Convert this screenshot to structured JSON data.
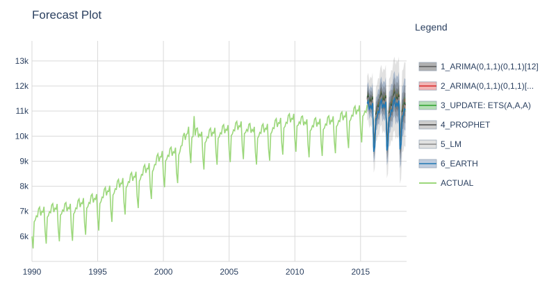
{
  "chart_data": {
    "type": "line",
    "title": "Forecast Plot",
    "legend_title": "Legend",
    "legend_position": "right",
    "grid": true,
    "xlim": [
      1990,
      2018.5
    ],
    "ylim": [
      5000,
      13800
    ],
    "x_ticks": [
      1990,
      1995,
      2000,
      2005,
      2010,
      2015
    ],
    "x_tick_labels": [
      "1990",
      "1995",
      "2000",
      "2005",
      "2010",
      "2015"
    ],
    "y_ticks": [
      6000,
      7000,
      8000,
      9000,
      10000,
      11000,
      12000,
      13000
    ],
    "y_tick_labels": [
      "6k",
      "7k",
      "8k",
      "9k",
      "10k",
      "11k",
      "12k",
      "13k"
    ],
    "actual": {
      "name": "ACTUAL",
      "color": "#9bd77a",
      "start": "1990-01",
      "frequency": "monthly",
      "yearly_levels": [
        [
          1990,
          6700
        ],
        [
          1991,
          6900
        ],
        [
          1992,
          7000
        ],
        [
          1993,
          7000
        ],
        [
          1994,
          7250
        ],
        [
          1995,
          7400
        ],
        [
          1996,
          7750
        ],
        [
          1997,
          8050
        ],
        [
          1998,
          8300
        ],
        [
          1999,
          8650
        ],
        [
          2000,
          9150
        ],
        [
          2001,
          9250
        ],
        [
          2002,
          10150
        ],
        [
          2003,
          9850
        ],
        [
          2004,
          10050
        ],
        [
          2005,
          10150
        ],
        [
          2006,
          10300
        ],
        [
          2007,
          10050
        ],
        [
          2008,
          10200
        ],
        [
          2009,
          10450
        ],
        [
          2010,
          10600
        ],
        [
          2011,
          10350
        ],
        [
          2012,
          10400
        ],
        [
          2013,
          10500
        ],
        [
          2014,
          10700
        ],
        [
          2015,
          10950
        ]
      ],
      "monthly_pattern": [
        -700,
        -1200,
        -150,
        -100,
        50,
        0,
        300,
        350,
        0,
        150,
        100,
        300
      ],
      "peak_spike": {
        "x": "2002-05",
        "y": 10800
      }
    },
    "forecast_start": 2015.5,
    "forecast_end": 2018.45,
    "forecast_level": {
      "start": 11050,
      "slope_per_year": 50
    },
    "forecast_pattern": [
      -1500,
      -1300,
      -200,
      -150,
      100,
      50,
      450,
      550,
      200,
      350,
      250,
      450
    ],
    "series": [
      {
        "name": "1_ARIMA(0,1,1)(0,1,1)[12]",
        "color": "#5a5a5a",
        "band_fill": "rgba(80,80,80,0.45)",
        "band_half_width": 250
      },
      {
        "name": "2_ARIMA(0,1,1)(0,1,1)[...",
        "color": "#d62728",
        "band_fill": "rgba(214,39,40,0.35)",
        "band_half_width": 120
      },
      {
        "name": "3_UPDATE: ETS(A,A,A)",
        "color": "#2ca02c",
        "band_fill": "rgba(44,160,44,0.35)",
        "band_half_width": 150
      },
      {
        "name": "4_PROPHET",
        "color": "#444444",
        "band_fill": "rgba(60,60,60,0.25)",
        "band_half_width": 400
      },
      {
        "name": "5_LM",
        "color": "#888888",
        "band_fill": "rgba(120,120,120,0.22)",
        "band_half_width": 900
      },
      {
        "name": "6_EARTH",
        "color": "#1f77b4",
        "band_fill": "rgba(70,110,160,0.35)",
        "band_half_width": 550
      }
    ]
  }
}
